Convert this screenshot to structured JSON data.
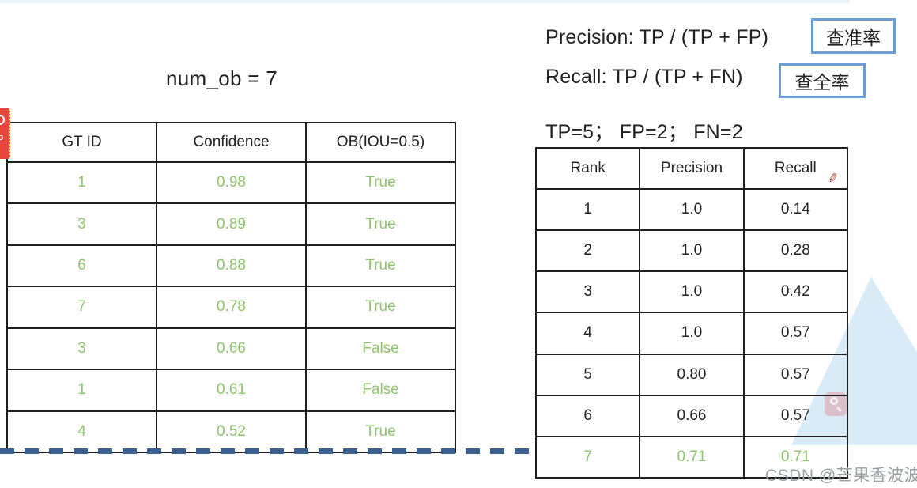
{
  "heading": {
    "num_ob": "num_ob = 7"
  },
  "formulas": {
    "precision": "Precision: TP / (TP + FP)",
    "recall": "Recall: TP / (TP + FN)",
    "counts": "TP=5；  FP=2；  FN=2",
    "precision_badge": "查准率",
    "recall_badge": "查全率"
  },
  "left_table": {
    "headers": [
      "GT ID",
      "Confidence",
      "OB(IOU=0.5)"
    ],
    "rows": [
      [
        "1",
        "0.98",
        "True"
      ],
      [
        "3",
        "0.89",
        "True"
      ],
      [
        "6",
        "0.88",
        "True"
      ],
      [
        "7",
        "0.78",
        "True"
      ],
      [
        "3",
        "0.66",
        "False"
      ],
      [
        "1",
        "0.61",
        "False"
      ],
      [
        "4",
        "0.52",
        "True"
      ]
    ]
  },
  "right_table": {
    "headers": [
      "Rank",
      "Precision",
      "Recall"
    ],
    "rows": [
      [
        "1",
        "1.0",
        "0.14"
      ],
      [
        "2",
        "1.0",
        "0.28"
      ],
      [
        "3",
        "1.0",
        "0.42"
      ],
      [
        "4",
        "1.0",
        "0.57"
      ],
      [
        "5",
        "0.80",
        "0.57"
      ],
      [
        "6",
        "0.66",
        "0.57"
      ],
      [
        "7",
        "0.71",
        "0.71"
      ]
    ],
    "highlighted_rank": "7"
  },
  "icons": {
    "pencil": "✎"
  },
  "watermark": "CSDN @芒果香波波",
  "colors": {
    "green_value_text": "#8fc46e",
    "dashed_line_blue": "#3a6090",
    "badge_border_blue": "#6d9ed3",
    "background_triangle": "#d9ebf7",
    "table_border": "#1f1f1f",
    "watermark_gray": "#9aa0a3",
    "sticker_red": "#e8453c"
  }
}
